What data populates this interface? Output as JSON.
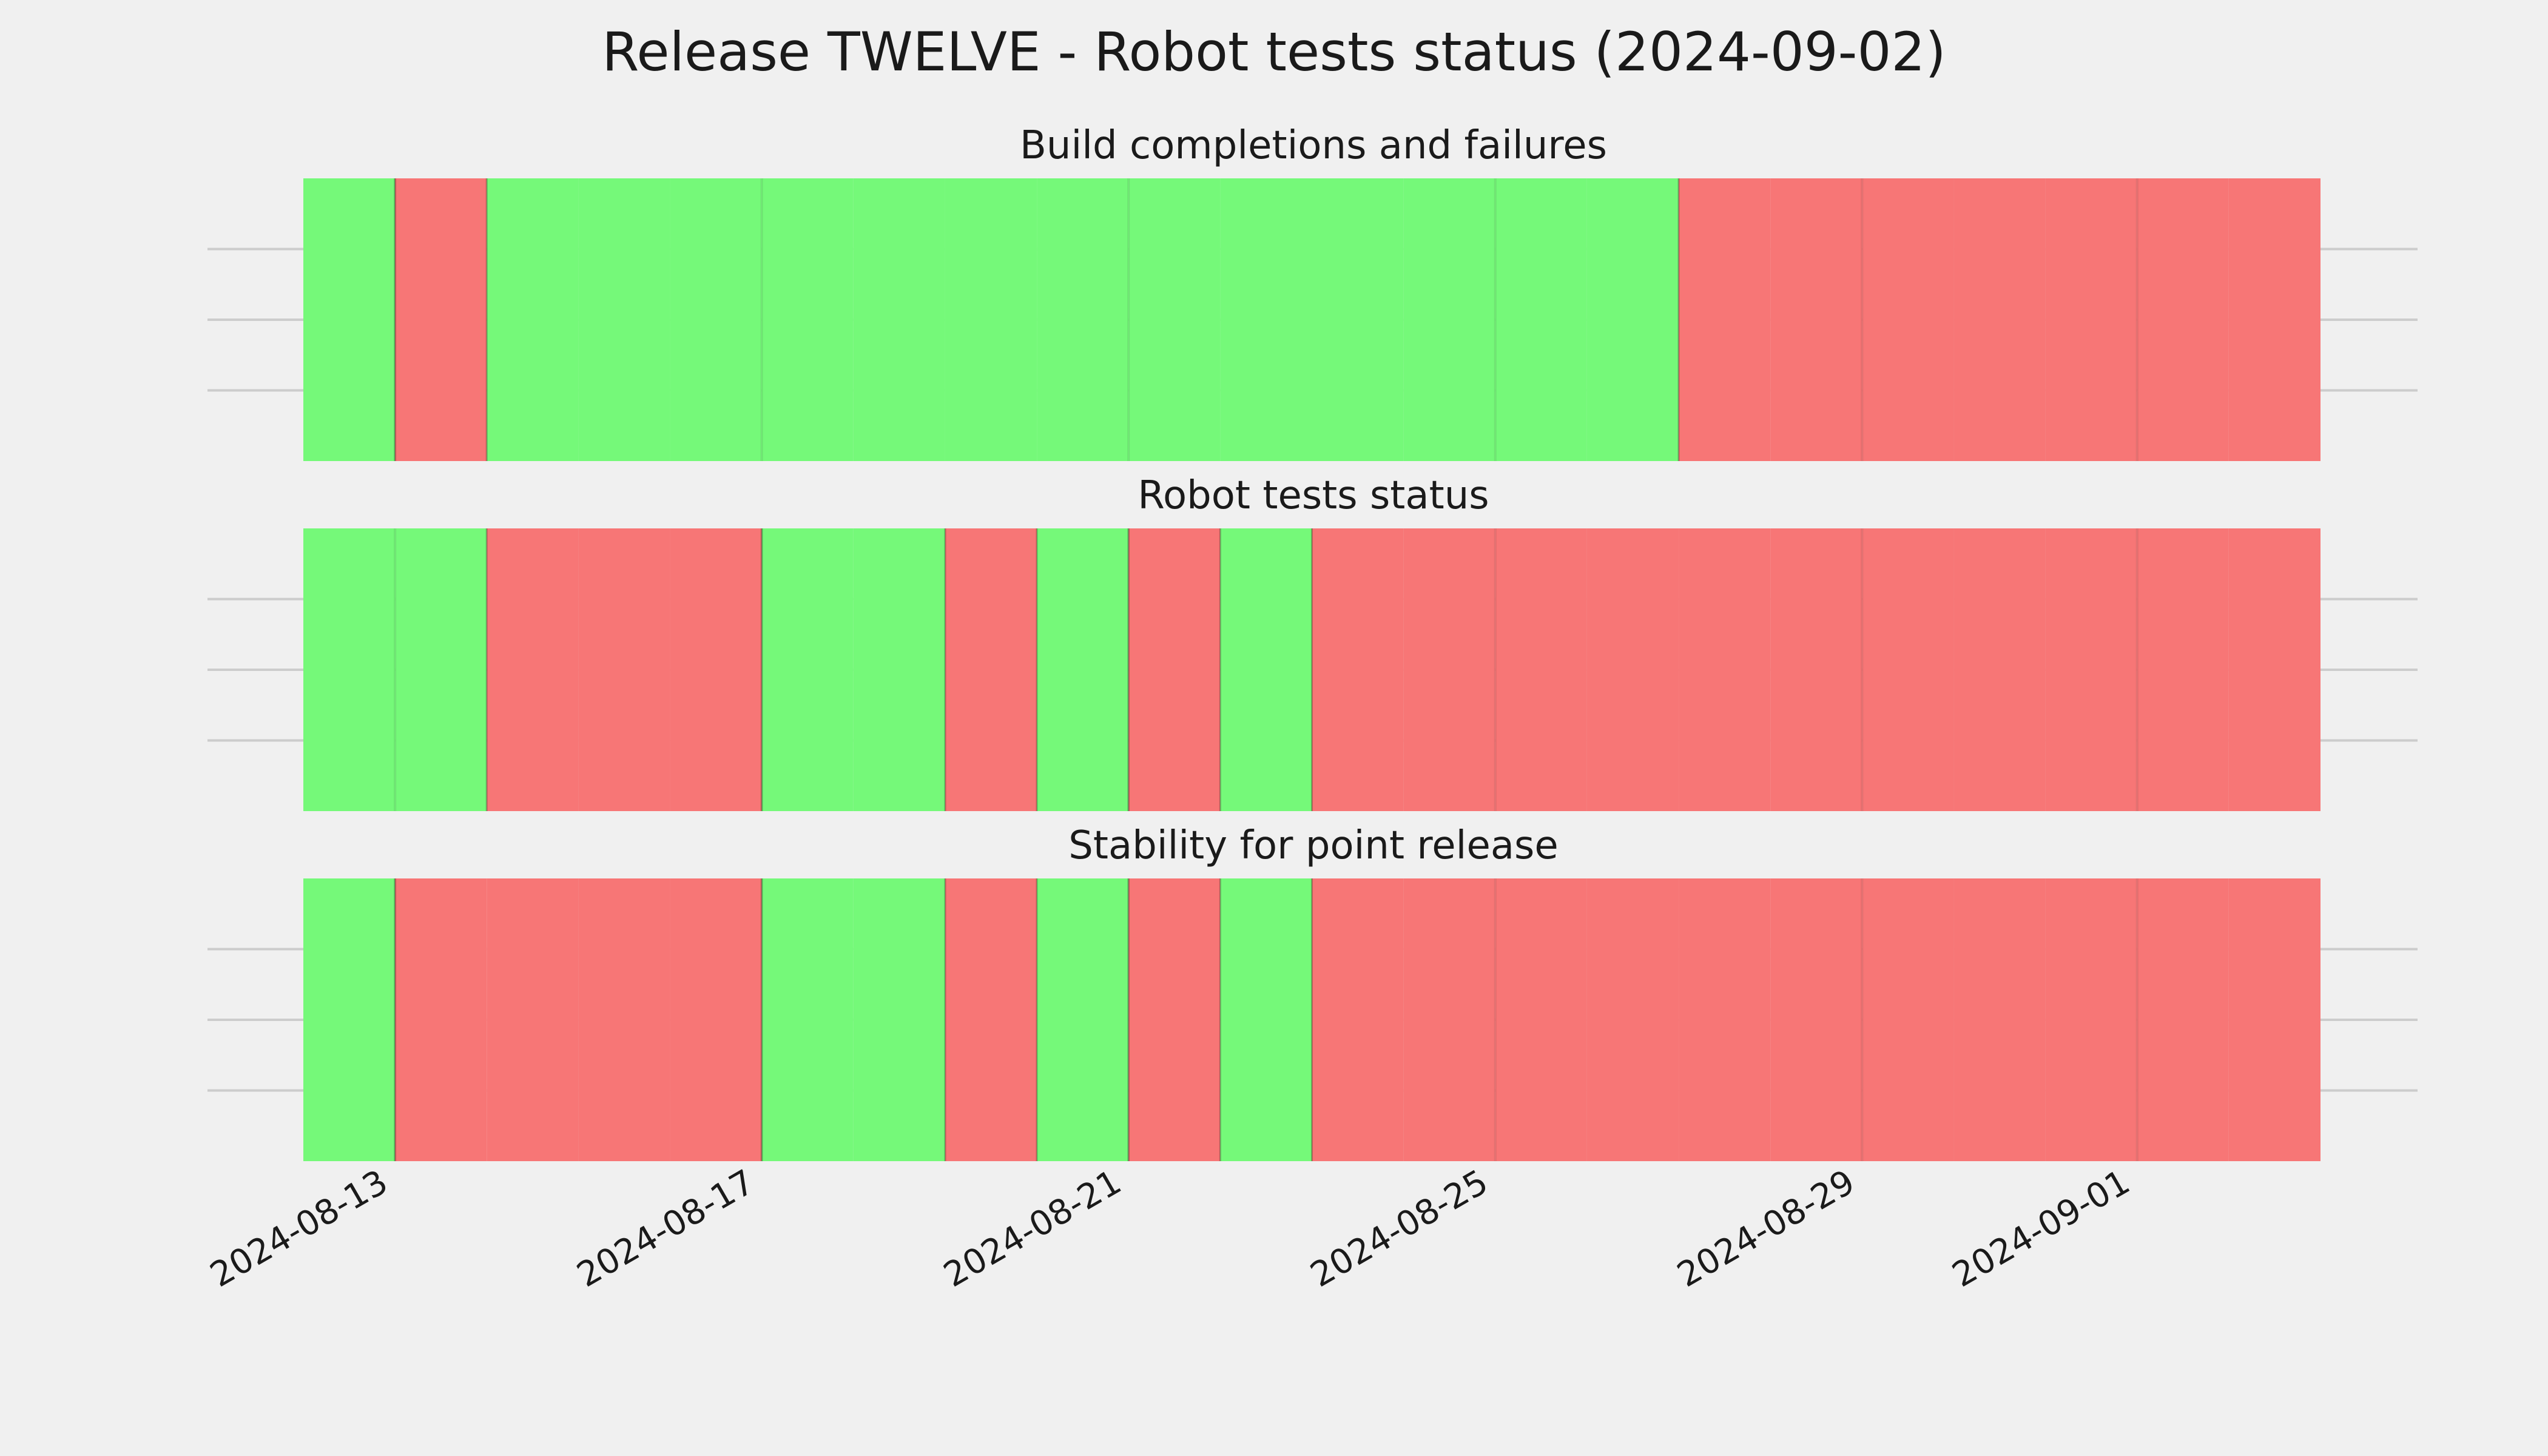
{
  "chart_data": {
    "type": "timeline",
    "title": "Release TWELVE - Robot tests status (2024-09-02)",
    "x_axis": {
      "type": "date",
      "range": [
        "2024-08-12",
        "2024-09-03"
      ],
      "ticks": [
        "2024-08-13",
        "2024-08-17",
        "2024-08-21",
        "2024-08-25",
        "2024-08-29",
        "2024-09-01"
      ],
      "grid": true
    },
    "colors": {
      "pass": "#75f979",
      "fail": "#f77676",
      "background": "#f0f0f0",
      "grid": "#cccccc"
    },
    "panels": [
      {
        "title": "Build completions and failures",
        "days": [
          {
            "date": "2024-08-12",
            "status": "pass"
          },
          {
            "date": "2024-08-13",
            "status": "fail"
          },
          {
            "date": "2024-08-14",
            "status": "pass"
          },
          {
            "date": "2024-08-15",
            "status": "pass"
          },
          {
            "date": "2024-08-16",
            "status": "pass"
          },
          {
            "date": "2024-08-17",
            "status": "pass"
          },
          {
            "date": "2024-08-18",
            "status": "pass"
          },
          {
            "date": "2024-08-19",
            "status": "pass"
          },
          {
            "date": "2024-08-20",
            "status": "pass"
          },
          {
            "date": "2024-08-21",
            "status": "pass"
          },
          {
            "date": "2024-08-22",
            "status": "pass"
          },
          {
            "date": "2024-08-23",
            "status": "pass"
          },
          {
            "date": "2024-08-24",
            "status": "pass"
          },
          {
            "date": "2024-08-25",
            "status": "pass"
          },
          {
            "date": "2024-08-26",
            "status": "pass"
          },
          {
            "date": "2024-08-27",
            "status": "fail"
          },
          {
            "date": "2024-08-28",
            "status": "fail"
          },
          {
            "date": "2024-08-29",
            "status": "fail"
          },
          {
            "date": "2024-08-30",
            "status": "fail"
          },
          {
            "date": "2024-08-31",
            "status": "fail"
          },
          {
            "date": "2024-09-01",
            "status": "fail"
          },
          {
            "date": "2024-09-02",
            "status": "fail"
          }
        ]
      },
      {
        "title": "Robot tests status",
        "days": [
          {
            "date": "2024-08-12",
            "status": "pass"
          },
          {
            "date": "2024-08-13",
            "status": "pass"
          },
          {
            "date": "2024-08-14",
            "status": "fail"
          },
          {
            "date": "2024-08-15",
            "status": "fail"
          },
          {
            "date": "2024-08-16",
            "status": "fail"
          },
          {
            "date": "2024-08-17",
            "status": "pass"
          },
          {
            "date": "2024-08-18",
            "status": "pass"
          },
          {
            "date": "2024-08-19",
            "status": "fail"
          },
          {
            "date": "2024-08-20",
            "status": "pass"
          },
          {
            "date": "2024-08-21",
            "status": "fail"
          },
          {
            "date": "2024-08-22",
            "status": "pass"
          },
          {
            "date": "2024-08-23",
            "status": "fail"
          },
          {
            "date": "2024-08-24",
            "status": "fail"
          },
          {
            "date": "2024-08-25",
            "status": "fail"
          },
          {
            "date": "2024-08-26",
            "status": "fail"
          },
          {
            "date": "2024-08-27",
            "status": "fail"
          },
          {
            "date": "2024-08-28",
            "status": "fail"
          },
          {
            "date": "2024-08-29",
            "status": "fail"
          },
          {
            "date": "2024-08-30",
            "status": "fail"
          },
          {
            "date": "2024-08-31",
            "status": "fail"
          },
          {
            "date": "2024-09-01",
            "status": "fail"
          },
          {
            "date": "2024-09-02",
            "status": "fail"
          }
        ]
      },
      {
        "title": "Stability for point release",
        "days": [
          {
            "date": "2024-08-12",
            "status": "pass"
          },
          {
            "date": "2024-08-13",
            "status": "fail"
          },
          {
            "date": "2024-08-14",
            "status": "fail"
          },
          {
            "date": "2024-08-15",
            "status": "fail"
          },
          {
            "date": "2024-08-16",
            "status": "fail"
          },
          {
            "date": "2024-08-17",
            "status": "pass"
          },
          {
            "date": "2024-08-18",
            "status": "pass"
          },
          {
            "date": "2024-08-19",
            "status": "fail"
          },
          {
            "date": "2024-08-20",
            "status": "pass"
          },
          {
            "date": "2024-08-21",
            "status": "fail"
          },
          {
            "date": "2024-08-22",
            "status": "pass"
          },
          {
            "date": "2024-08-23",
            "status": "fail"
          },
          {
            "date": "2024-08-24",
            "status": "fail"
          },
          {
            "date": "2024-08-25",
            "status": "fail"
          },
          {
            "date": "2024-08-26",
            "status": "fail"
          },
          {
            "date": "2024-08-27",
            "status": "fail"
          },
          {
            "date": "2024-08-28",
            "status": "fail"
          },
          {
            "date": "2024-08-29",
            "status": "fail"
          },
          {
            "date": "2024-08-30",
            "status": "fail"
          },
          {
            "date": "2024-08-31",
            "status": "fail"
          },
          {
            "date": "2024-09-01",
            "status": "fail"
          },
          {
            "date": "2024-09-02",
            "status": "fail"
          }
        ]
      }
    ]
  }
}
